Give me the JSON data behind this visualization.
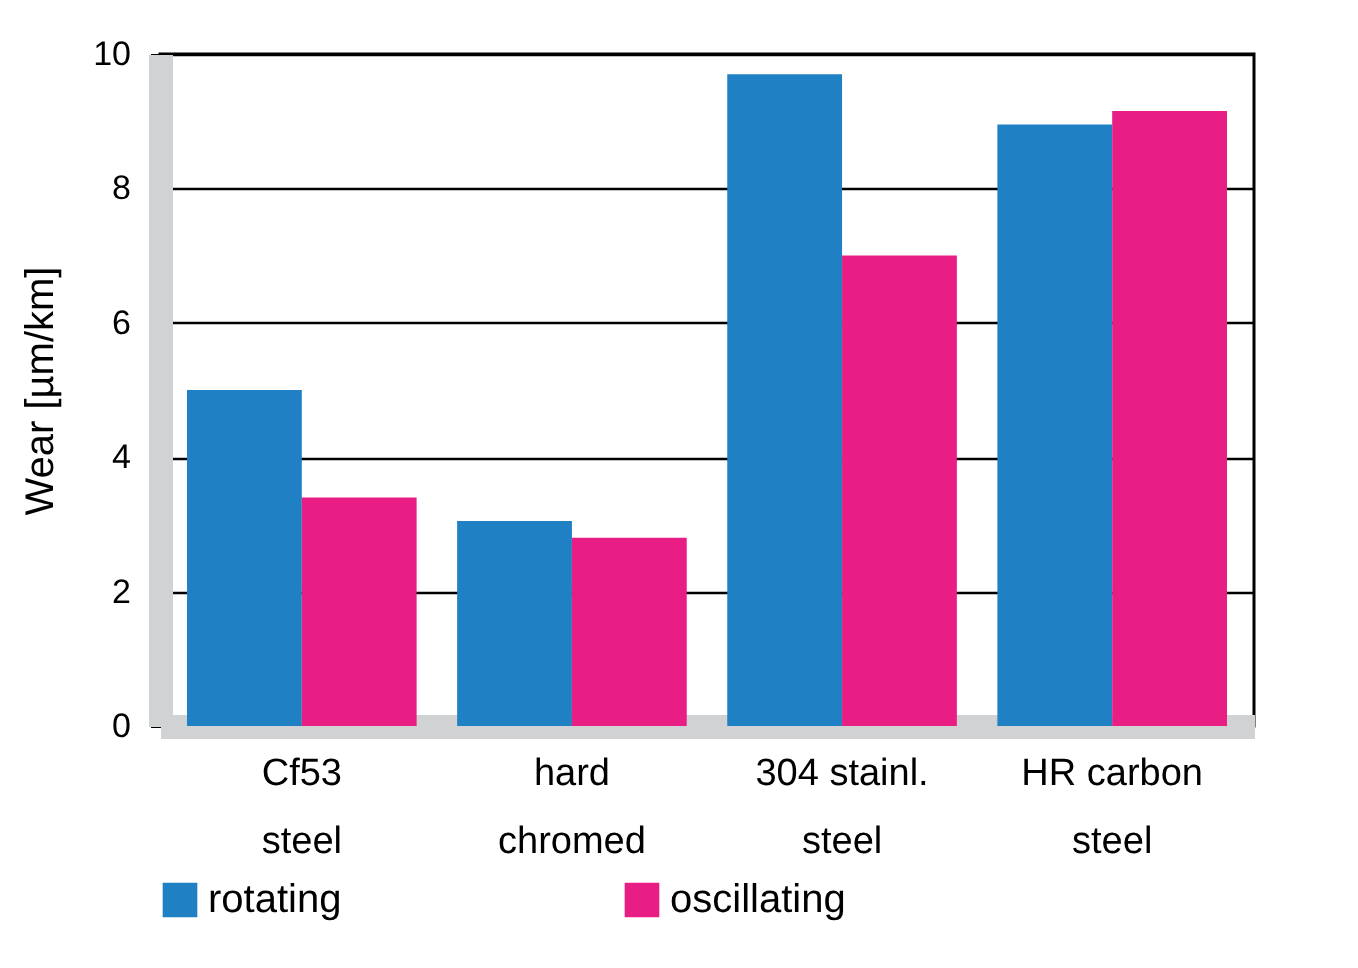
{
  "chart_data": {
    "type": "bar",
    "ylabel": "Wear [µm/km]",
    "categories": [
      "Cf53\nsteel",
      "hard\nchromed",
      "304 stainl.\nsteel",
      "HR carbon\nsteel"
    ],
    "series": [
      {
        "name": "rotating",
        "color": "#1f80c4",
        "values": [
          5.0,
          3.05,
          9.7,
          8.95
        ]
      },
      {
        "name": "oscillating",
        "color": "#e91e84",
        "values": [
          3.4,
          2.8,
          7.0,
          9.15
        ]
      }
    ],
    "ylim": [
      0,
      10
    ],
    "yticks": [
      0,
      2,
      4,
      6,
      8,
      10
    ],
    "grid": "y",
    "legend": "bottom"
  }
}
